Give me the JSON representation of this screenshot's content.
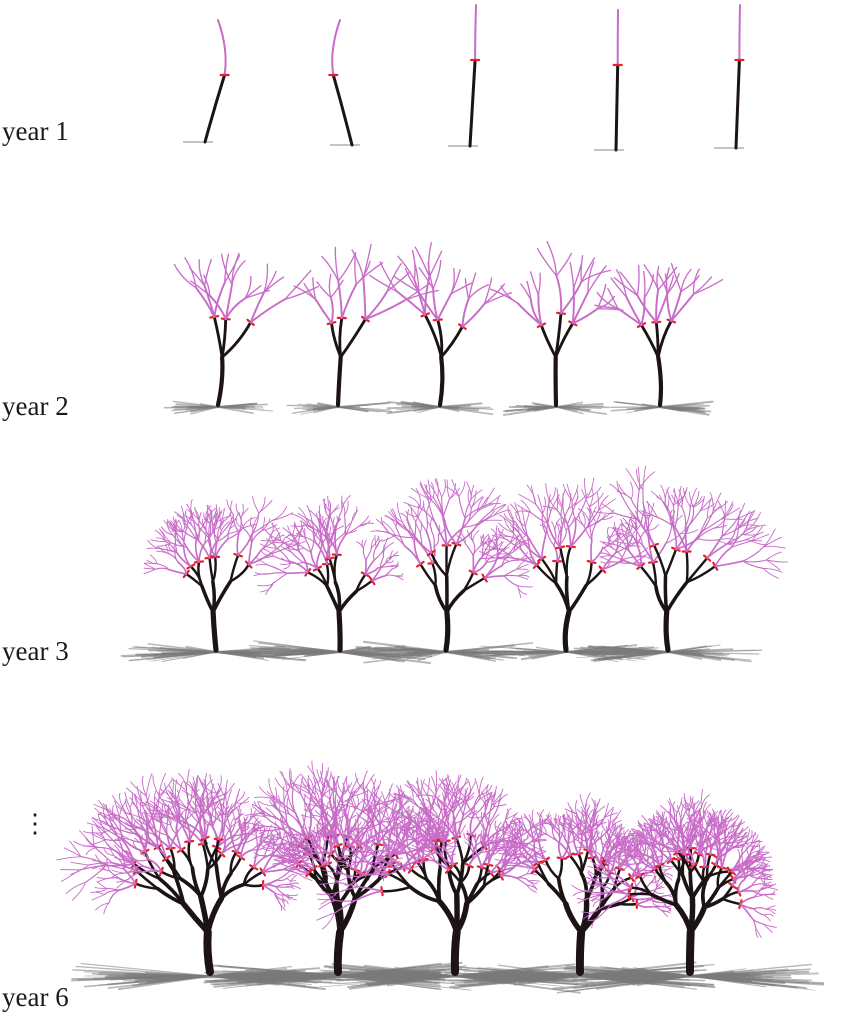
{
  "rows": [
    {
      "label": "year 1",
      "year": 1,
      "trees": 5
    },
    {
      "label": "year 2",
      "year": 2,
      "trees": 5
    },
    {
      "label": "year 3",
      "year": 3,
      "trees": 5
    },
    {
      "label": "year 6",
      "year": 6,
      "trees": 5
    }
  ],
  "ellipsis": "⋮",
  "colors": {
    "old_wood": "#1c1414",
    "new_growth": "#c86cc8",
    "cut_marks": "#e8202a",
    "shadow": "#7a7a7a",
    "background": "#ffffff"
  }
}
